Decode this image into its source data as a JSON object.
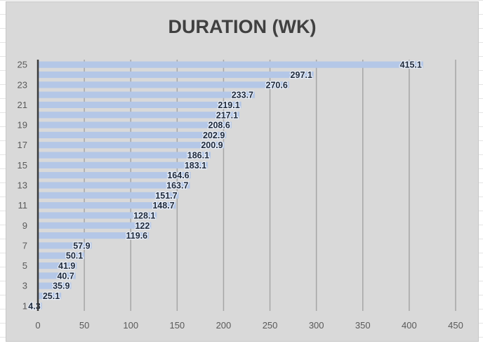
{
  "chart_data": {
    "type": "bar",
    "orientation": "horizontal",
    "title": "DURATION (WK)",
    "categories": [
      "1",
      "2",
      "3",
      "4",
      "5",
      "6",
      "7",
      "8",
      "9",
      "10",
      "11",
      "12",
      "13",
      "14",
      "15",
      "16",
      "17",
      "18",
      "19",
      "20",
      "21",
      "22",
      "23",
      "24",
      "25"
    ],
    "category_tick_labels": [
      "1",
      "3",
      "5",
      "7",
      "9",
      "11",
      "13",
      "15",
      "17",
      "19",
      "21",
      "23",
      "25"
    ],
    "values": [
      4.3,
      25.1,
      35.9,
      40.7,
      41.9,
      50.1,
      57.9,
      119.6,
      122,
      128.1,
      148.7,
      151.7,
      163.7,
      164.6,
      183.1,
      186.1,
      200.9,
      202.9,
      208.6,
      217.1,
      219.1,
      233.7,
      270.6,
      297.1,
      415.1
    ],
    "xlim": [
      0,
      450
    ],
    "x_ticks": [
      0,
      50,
      100,
      150,
      200,
      250,
      300,
      350,
      400,
      450
    ],
    "xlabel": "",
    "ylabel": "",
    "grid": "vertical",
    "legend": "none",
    "colors": {
      "bar": "#b4c7e7",
      "label": "#1f2a3c",
      "background": "#d9d9d9",
      "grid": "#a6a6a6",
      "axis": "#3a3a3a"
    }
  }
}
